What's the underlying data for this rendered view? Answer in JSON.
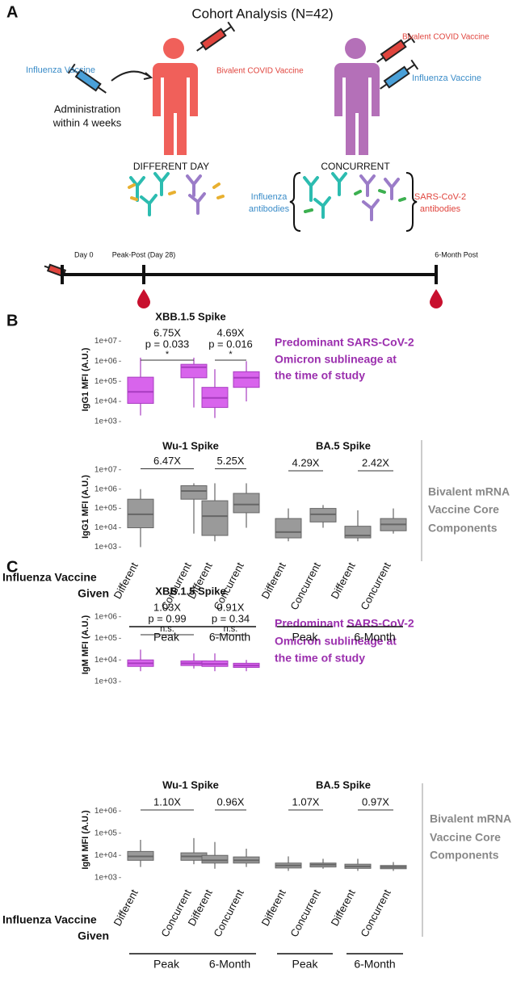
{
  "panel_labels": [
    "A",
    "B",
    "C"
  ],
  "panel_a": {
    "title": "Cohort Analysis (N=42)",
    "influenza_vaccine": "Influenza Vaccine",
    "administration": [
      "Administration",
      "within  4 weeks"
    ],
    "covid_vaccine": "Bivalent COVID Vaccine",
    "different_day": "DIFFERENT DAY",
    "concurrent": "CONCURRENT",
    "influenza_antibodies": [
      "Influenza",
      "antibodies"
    ],
    "sars_antibodies": [
      "SARS-CoV-2",
      "antibodies"
    ],
    "timeline": [
      "Day 0",
      "Peak-Post (Day 28)",
      "6-Month Post"
    ]
  },
  "row_notes": {
    "predominant": [
      "Predominant SARS-CoV-2",
      "Omicron sublineage at",
      "the time of study"
    ],
    "bivalent": [
      "Bivalent mRNA",
      "Vaccine Core",
      "Components"
    ],
    "influenza_given": [
      "Influenza Vaccine",
      "Given"
    ]
  },
  "chart_data": [
    {
      "type": "box",
      "title": "XBB.1.5 Spike",
      "ylabel": "IgG1  MFI (A.U.)",
      "color": "#d864ec",
      "edge": "#a83cc0",
      "log_y": true,
      "ylim": [
        300,
        50000000
      ],
      "yticks": [
        {
          "value": 1000,
          "label": "1e+03"
        },
        {
          "value": 10000,
          "label": "1e+04"
        },
        {
          "value": 100000,
          "label": "1e+05"
        },
        {
          "value": 1000000,
          "label": "1e+06"
        },
        {
          "value": 10000000,
          "label": "1e+07"
        }
      ],
      "boxes": [
        {
          "min": 2000,
          "q1": 8000,
          "median": 30000,
          "q3": 160000,
          "max": 1500000
        },
        {
          "min": 5000,
          "q1": 150000,
          "median": 500000,
          "q3": 700000,
          "max": 1500000
        },
        {
          "min": 1500,
          "q1": 5000,
          "median": 15000,
          "q3": 50000,
          "max": 400000
        },
        {
          "min": 10000,
          "q1": 50000,
          "median": 150000,
          "q3": 300000,
          "max": 1000000
        }
      ],
      "comparisons": [
        {
          "fold": "6.75X",
          "p": "p = 0.033",
          "sig": "*"
        },
        {
          "fold": "4.69X",
          "p": "p = 0.016",
          "sig": "*"
        }
      ]
    },
    {
      "type": "box",
      "title": "Wu-1 Spike",
      "ylabel": "IgG1  MFI (A.U.)",
      "color": "#9a9a9a",
      "edge": "#666666",
      "log_y": true,
      "ylim": [
        300,
        50000000
      ],
      "yticks": [
        {
          "value": 1000,
          "label": "1e+03"
        },
        {
          "value": 10000,
          "label": "1e+04"
        },
        {
          "value": 100000,
          "label": "1e+05"
        },
        {
          "value": 1000000,
          "label": "1e+06"
        },
        {
          "value": 10000000,
          "label": "1e+07"
        }
      ],
      "categories": [
        "Different",
        "Concurrent",
        "Different",
        "Concurrent"
      ],
      "groups": [
        "Peak",
        "6-Month"
      ],
      "boxes": [
        {
          "min": 1000,
          "q1": 10000,
          "median": 50000,
          "q3": 300000,
          "max": 1000000
        },
        {
          "min": 5000,
          "q1": 300000,
          "median": 800000,
          "q3": 1500000,
          "max": 2000000
        },
        {
          "min": 2000,
          "q1": 4000,
          "median": 40000,
          "q3": 250000,
          "max": 2000000
        },
        {
          "min": 10000,
          "q1": 60000,
          "median": 160000,
          "q3": 600000,
          "max": 2000000
        }
      ],
      "comparisons": [
        {
          "fold": "6.47X"
        },
        {
          "fold": "5.25X"
        }
      ]
    },
    {
      "type": "box",
      "title": "BA.5 Spike",
      "color": "#9a9a9a",
      "edge": "#666666",
      "log_y": true,
      "ylim": [
        300,
        50000000
      ],
      "categories": [
        "Different",
        "Concurrent",
        "Different",
        "Concurrent"
      ],
      "groups": [
        "Peak",
        "6-Month"
      ],
      "boxes": [
        {
          "min": 2000,
          "q1": 3000,
          "median": 6000,
          "q3": 30000,
          "max": 100000
        },
        {
          "min": 10000,
          "q1": 20000,
          "median": 50000,
          "q3": 100000,
          "max": 150000
        },
        {
          "min": 2000,
          "q1": 3000,
          "median": 4000,
          "q3": 12000,
          "max": 80000
        },
        {
          "min": 5000,
          "q1": 7000,
          "median": 15000,
          "q3": 30000,
          "max": 100000
        }
      ],
      "comparisons": [
        {
          "fold": "4.29X"
        },
        {
          "fold": "2.42X"
        }
      ]
    },
    {
      "type": "box",
      "title": "XBB.1.5 Spike",
      "ylabel": "IgM  MFI (A.U.)",
      "color": "#d864ec",
      "edge": "#a83cc0",
      "log_y": true,
      "ylim": [
        500,
        5000000
      ],
      "yticks": [
        {
          "value": 1000,
          "label": "1e+03"
        },
        {
          "value": 10000,
          "label": "1e+04"
        },
        {
          "value": 100000,
          "label": "1e+05"
        },
        {
          "value": 1000000,
          "label": "1e+06"
        }
      ],
      "boxes": [
        {
          "min": 3000,
          "q1": 5000,
          "median": 7000,
          "q3": 10000,
          "max": 30000
        },
        {
          "min": 4000,
          "q1": 5500,
          "median": 7000,
          "q3": 9000,
          "max": 20000
        },
        {
          "min": 3000,
          "q1": 5000,
          "median": 6500,
          "q3": 9000,
          "max": 20000
        },
        {
          "min": 3000,
          "q1": 4500,
          "median": 5500,
          "q3": 7000,
          "max": 10000
        }
      ],
      "comparisons": [
        {
          "fold": "1.03X",
          "p": "p = 0.99",
          "sig": "n.s."
        },
        {
          "fold": "0.91X",
          "p": "p = 0.34",
          "sig": "n.s."
        }
      ]
    },
    {
      "type": "box",
      "title": "Wu-1 Spike",
      "ylabel": "IgM  MFI (A.U.)",
      "color": "#9a9a9a",
      "edge": "#666666",
      "log_y": true,
      "ylim": [
        500,
        5000000
      ],
      "yticks": [
        {
          "value": 1000,
          "label": "1e+03"
        },
        {
          "value": 10000,
          "label": "1e+04"
        },
        {
          "value": 100000,
          "label": "1e+05"
        },
        {
          "value": 1000000,
          "label": "1e+06"
        }
      ],
      "categories": [
        "Different",
        "Concurrent",
        "Different",
        "Concurrent"
      ],
      "groups": [
        "Peak",
        "6-Month"
      ],
      "boxes": [
        {
          "min": 3000,
          "q1": 6000,
          "median": 9000,
          "q3": 15000,
          "max": 50000
        },
        {
          "min": 4000,
          "q1": 6000,
          "median": 9000,
          "q3": 13000,
          "max": 60000
        },
        {
          "min": 2500,
          "q1": 4500,
          "median": 6000,
          "q3": 10000,
          "max": 40000
        },
        {
          "min": 3000,
          "q1": 4500,
          "median": 6000,
          "q3": 8500,
          "max": 20000
        }
      ],
      "comparisons": [
        {
          "fold": "1.10X"
        },
        {
          "fold": "0.96X"
        }
      ]
    },
    {
      "type": "box",
      "title": "BA.5 Spike",
      "color": "#9a9a9a",
      "edge": "#666666",
      "log_y": true,
      "ylim": [
        500,
        5000000
      ],
      "categories": [
        "Different",
        "Concurrent",
        "Different",
        "Concurrent"
      ],
      "groups": [
        "Peak",
        "6-Month"
      ],
      "boxes": [
        {
          "min": 2000,
          "q1": 2700,
          "median": 3500,
          "q3": 4500,
          "max": 9000
        },
        {
          "min": 2500,
          "q1": 3000,
          "median": 3800,
          "q3": 4500,
          "max": 7000
        },
        {
          "min": 2000,
          "q1": 2600,
          "median": 3200,
          "q3": 4000,
          "max": 7000
        },
        {
          "min": 2000,
          "q1": 2500,
          "median": 3000,
          "q3": 3500,
          "max": 5000
        }
      ],
      "comparisons": [
        {
          "fold": "1.07X"
        },
        {
          "fold": "0.97X"
        }
      ]
    }
  ]
}
